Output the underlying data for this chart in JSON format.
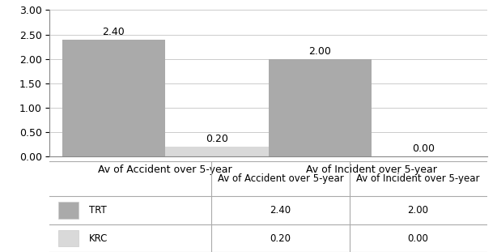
{
  "categories": [
    "Av of Accident over 5-year",
    "Av of Incident over 5-year"
  ],
  "trt_values": [
    2.4,
    2.0
  ],
  "krc_values": [
    0.2,
    0.0
  ],
  "trt_color": "#aaaaaa",
  "krc_color": "#d9d9d9",
  "ylim": [
    0,
    3.0
  ],
  "yticks": [
    0.0,
    0.5,
    1.0,
    1.5,
    2.0,
    2.5,
    3.0
  ],
  "bar_width": 0.25,
  "label_fontsize": 9,
  "tick_fontsize": 9,
  "table_fontsize": 8.5,
  "table_row_labels": [
    "TRT",
    "KRC"
  ],
  "table_data": [
    [
      "2.40",
      "2.00"
    ],
    [
      "0.20",
      "0.00"
    ]
  ]
}
